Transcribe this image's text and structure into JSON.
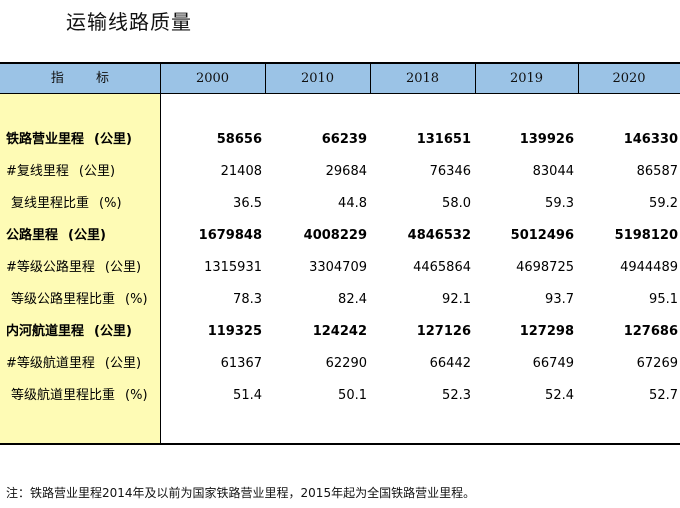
{
  "title": "运输线路质量",
  "table": {
    "header_label": "指  标",
    "years": [
      "2000",
      "2010",
      "2018",
      "2019",
      "2020"
    ],
    "rows": [
      {
        "name": "铁路营业里程",
        "unit": "(公里)",
        "style": "bold",
        "values": [
          "58656",
          "66239",
          "131651",
          "139926",
          "146330"
        ]
      },
      {
        "name": "#复线里程",
        "unit": "(公里)",
        "style": "norm",
        "values": [
          "21408",
          "29684",
          "76346",
          "83044",
          "86587"
        ]
      },
      {
        "name": "复线里程比重",
        "unit": "(%)",
        "style": "sub",
        "values": [
          "36.5",
          "44.8",
          "58.0",
          "59.3",
          "59.2"
        ]
      },
      {
        "name": "公路里程",
        "unit": "(公里)",
        "style": "bold",
        "values": [
          "1679848",
          "4008229",
          "4846532",
          "5012496",
          "5198120"
        ]
      },
      {
        "name": "#等级公路里程",
        "unit": "(公里)",
        "style": "norm",
        "values": [
          "1315931",
          "3304709",
          "4465864",
          "4698725",
          "4944489"
        ]
      },
      {
        "name": "等级公路里程比重",
        "unit": "(%)",
        "style": "sub",
        "values": [
          "78.3",
          "82.4",
          "92.1",
          "93.7",
          "95.1"
        ]
      },
      {
        "name": "内河航道里程",
        "unit": "(公里)",
        "style": "bold",
        "values": [
          "119325",
          "124242",
          "127126",
          "127298",
          "127686"
        ]
      },
      {
        "name": "#等级航道里程",
        "unit": "(公里)",
        "style": "norm",
        "values": [
          "61367",
          "62290",
          "66442",
          "66749",
          "67269"
        ]
      },
      {
        "name": "等级航道里程比重",
        "unit": "(%)",
        "style": "sub",
        "values": [
          "51.4",
          "50.1",
          "52.3",
          "52.4",
          "52.7"
        ]
      }
    ]
  },
  "note": "注：铁路营业里程2014年及以前为国家铁路营业里程，2015年起为全国铁路营业里程。",
  "colors": {
    "header_bg": "#9bc3e6",
    "stub_bg": "#fefbb5"
  }
}
